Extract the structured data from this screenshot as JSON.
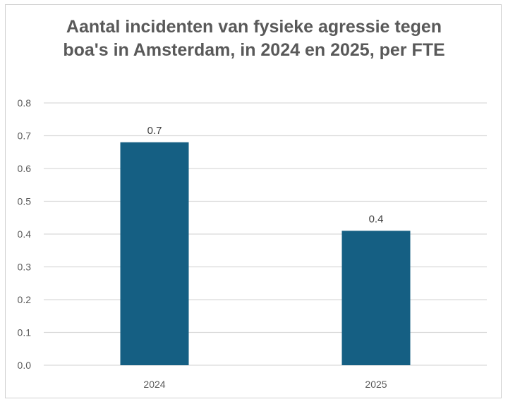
{
  "chart_data": {
    "type": "bar",
    "title": "Aantal incidenten van fysieke agressie tegen boa's in Amsterdam, in 2024 en 2025, per FTE",
    "categories": [
      "2024",
      "2025"
    ],
    "values": [
      0.68,
      0.41
    ],
    "data_labels": [
      "0.7",
      "0.4"
    ],
    "y_ticks": [
      "0.0",
      "0.1",
      "0.2",
      "0.3",
      "0.4",
      "0.5",
      "0.6",
      "0.7",
      "0.8"
    ],
    "ylim": [
      0,
      0.8
    ],
    "xlabel": "",
    "ylabel": "",
    "grid": true,
    "legend": "none",
    "bar_color": "#155F83",
    "grid_color": "#d9d9d9"
  }
}
